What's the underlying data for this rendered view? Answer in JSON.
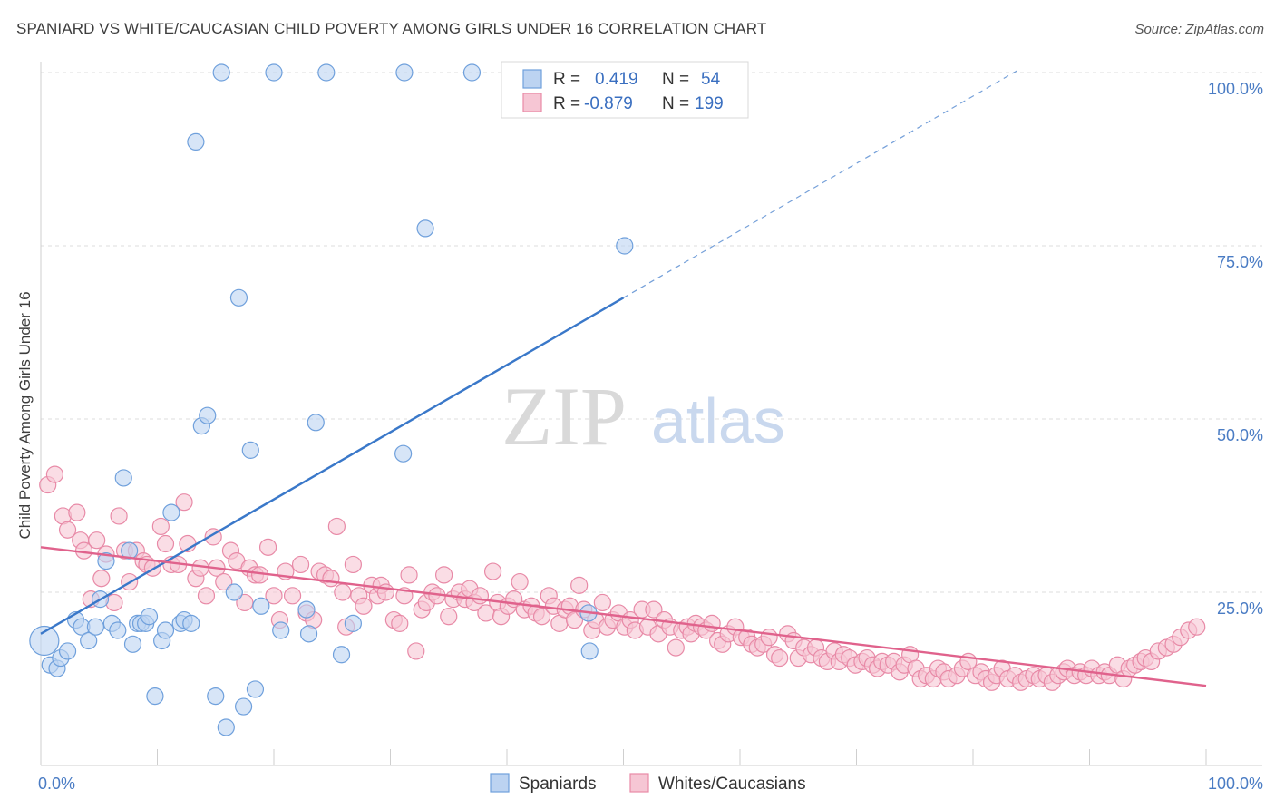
{
  "title": "SPANIARD VS WHITE/CAUCASIAN CHILD POVERTY AMONG GIRLS UNDER 16 CORRELATION CHART",
  "source": "Source: ZipAtlas.com",
  "watermark": {
    "zip": "ZIP",
    "atlas": "atlas"
  },
  "colors": {
    "blue": "#6fa0dc",
    "blue_fill": "#bcd3f1",
    "blue_line": "#3a78c9",
    "pink": "#e88aa7",
    "pink_fill": "#f6c6d4",
    "pink_line": "#e0628c",
    "tick_text": "#4a7cc4",
    "grid": "#dcdcdc"
  },
  "legend": {
    "rows": [
      {
        "r_label": "R =",
        "r_value": "0.419",
        "n_label": "N =",
        "n_value": "54",
        "color": "blue"
      },
      {
        "r_label": "R =",
        "r_value": "-0.879",
        "n_label": "N =",
        "n_value": "199",
        "color": "pink"
      }
    ],
    "placement": "top-center"
  },
  "bottom_legend": [
    {
      "label": "Spaniards",
      "color": "blue"
    },
    {
      "label": "Whites/Caucasians",
      "color": "pink"
    }
  ],
  "chart_data": {
    "type": "scatter",
    "xlabel": "",
    "ylabel": "Child Poverty Among Girls Under 16",
    "xlim": [
      0,
      100
    ],
    "ylim": [
      0,
      100
    ],
    "x_tick_labels": [
      "0.0%",
      "100.0%"
    ],
    "y_tick_labels": [
      "25.0%",
      "50.0%",
      "75.0%",
      "100.0%"
    ],
    "y_ticks": [
      25,
      50,
      75,
      100
    ],
    "grid": true,
    "series": [
      {
        "name": "Spaniards",
        "color": "blue",
        "trend": {
          "x0": 0,
          "y0": 19.0,
          "x1": 50,
          "y1": 67.5,
          "dash_to_x": 84
        },
        "points": [
          [
            0.3,
            18.0
          ],
          [
            0.8,
            14.5
          ],
          [
            1.4,
            14.0
          ],
          [
            1.7,
            15.5
          ],
          [
            2.3,
            16.5
          ],
          [
            3.0,
            21.0
          ],
          [
            3.5,
            20.0
          ],
          [
            4.1,
            18.0
          ],
          [
            4.7,
            20.0
          ],
          [
            5.1,
            24.0
          ],
          [
            5.6,
            29.5
          ],
          [
            6.1,
            20.5
          ],
          [
            6.6,
            19.5
          ],
          [
            7.1,
            41.5
          ],
          [
            7.6,
            31.0
          ],
          [
            7.9,
            17.5
          ],
          [
            8.3,
            20.5
          ],
          [
            8.6,
            20.5
          ],
          [
            9.0,
            20.5
          ],
          [
            9.3,
            21.5
          ],
          [
            9.8,
            10.0
          ],
          [
            10.4,
            18.0
          ],
          [
            10.7,
            19.5
          ],
          [
            11.2,
            36.5
          ],
          [
            12.0,
            20.5
          ],
          [
            12.3,
            21.0
          ],
          [
            12.9,
            20.5
          ],
          [
            13.3,
            90.0
          ],
          [
            13.8,
            49.0
          ],
          [
            14.3,
            50.5
          ],
          [
            15.0,
            10.0
          ],
          [
            15.5,
            100.0
          ],
          [
            15.9,
            5.5
          ],
          [
            16.6,
            25.0
          ],
          [
            17.0,
            67.5
          ],
          [
            17.4,
            8.5
          ],
          [
            18.0,
            45.5
          ],
          [
            18.4,
            11.0
          ],
          [
            18.9,
            23.0
          ],
          [
            20.0,
            100.0
          ],
          [
            20.6,
            19.5
          ],
          [
            22.8,
            22.5
          ],
          [
            23.0,
            19.0
          ],
          [
            23.6,
            49.5
          ],
          [
            24.5,
            100.0
          ],
          [
            25.8,
            16.0
          ],
          [
            26.8,
            20.5
          ],
          [
            31.2,
            100.0
          ],
          [
            31.1,
            45.0
          ],
          [
            33.0,
            77.5
          ],
          [
            37.0,
            100.0
          ],
          [
            47.0,
            22.0
          ],
          [
            47.1,
            16.5
          ],
          [
            50.1,
            75.0
          ]
        ]
      },
      {
        "name": "Whites/Caucasians",
        "color": "pink",
        "trend": {
          "x0": 0,
          "y0": 31.5,
          "x1": 100,
          "y1": 11.5
        },
        "points": [
          [
            0.6,
            40.5
          ],
          [
            1.2,
            42.0
          ],
          [
            1.9,
            36.0
          ],
          [
            2.3,
            34.0
          ],
          [
            3.1,
            36.5
          ],
          [
            3.4,
            32.5
          ],
          [
            3.7,
            31.0
          ],
          [
            4.3,
            24.0
          ],
          [
            4.8,
            32.5
          ],
          [
            5.2,
            27.0
          ],
          [
            5.6,
            30.5
          ],
          [
            6.3,
            23.5
          ],
          [
            6.7,
            36.0
          ],
          [
            7.2,
            31.0
          ],
          [
            7.6,
            26.5
          ],
          [
            8.2,
            31.0
          ],
          [
            8.8,
            29.5
          ],
          [
            9.1,
            29.0
          ],
          [
            9.6,
            28.5
          ],
          [
            10.3,
            34.5
          ],
          [
            10.7,
            32.0
          ],
          [
            11.2,
            29.0
          ],
          [
            11.8,
            29.0
          ],
          [
            12.3,
            38.0
          ],
          [
            12.6,
            32.0
          ],
          [
            13.3,
            27.0
          ],
          [
            13.7,
            28.5
          ],
          [
            14.2,
            24.5
          ],
          [
            14.8,
            33.0
          ],
          [
            15.1,
            28.5
          ],
          [
            15.7,
            26.5
          ],
          [
            16.3,
            31.0
          ],
          [
            16.8,
            29.5
          ],
          [
            17.5,
            23.5
          ],
          [
            17.9,
            28.5
          ],
          [
            18.4,
            27.5
          ],
          [
            18.8,
            27.5
          ],
          [
            19.5,
            31.5
          ],
          [
            20.0,
            24.5
          ],
          [
            20.5,
            21.0
          ],
          [
            21.0,
            28.0
          ],
          [
            21.6,
            24.5
          ],
          [
            22.3,
            29.0
          ],
          [
            22.8,
            22.0
          ],
          [
            23.4,
            21.0
          ],
          [
            23.9,
            28.0
          ],
          [
            24.4,
            27.5
          ],
          [
            24.9,
            27.0
          ],
          [
            25.4,
            34.5
          ],
          [
            25.9,
            25.0
          ],
          [
            26.2,
            20.0
          ],
          [
            26.8,
            29.0
          ],
          [
            27.3,
            24.5
          ],
          [
            27.7,
            23.0
          ],
          [
            28.4,
            26.0
          ],
          [
            28.9,
            24.5
          ],
          [
            29.2,
            26.0
          ],
          [
            29.6,
            25.0
          ],
          [
            30.3,
            21.0
          ],
          [
            30.8,
            20.5
          ],
          [
            31.2,
            24.5
          ],
          [
            31.6,
            27.5
          ],
          [
            32.2,
            16.5
          ],
          [
            32.7,
            22.5
          ],
          [
            33.1,
            23.5
          ],
          [
            33.6,
            25.0
          ],
          [
            34.0,
            24.5
          ],
          [
            34.6,
            27.5
          ],
          [
            35.0,
            21.5
          ],
          [
            35.4,
            24.0
          ],
          [
            35.9,
            25.0
          ],
          [
            36.4,
            24.0
          ],
          [
            36.8,
            25.5
          ],
          [
            37.2,
            23.5
          ],
          [
            37.7,
            24.5
          ],
          [
            38.2,
            22.0
          ],
          [
            38.8,
            28.0
          ],
          [
            39.2,
            23.5
          ],
          [
            39.5,
            21.5
          ],
          [
            40.1,
            23.0
          ],
          [
            40.6,
            24.0
          ],
          [
            41.1,
            26.5
          ],
          [
            41.5,
            22.5
          ],
          [
            42.1,
            23.0
          ],
          [
            42.5,
            22.0
          ],
          [
            43.0,
            21.5
          ],
          [
            43.6,
            24.5
          ],
          [
            44.0,
            23.0
          ],
          [
            44.5,
            20.5
          ],
          [
            45.0,
            22.5
          ],
          [
            45.4,
            23.0
          ],
          [
            45.8,
            21.0
          ],
          [
            46.2,
            26.0
          ],
          [
            46.6,
            22.5
          ],
          [
            47.3,
            19.5
          ],
          [
            47.6,
            21.0
          ],
          [
            48.2,
            23.5
          ],
          [
            48.6,
            20.0
          ],
          [
            49.1,
            21.0
          ],
          [
            49.6,
            22.0
          ],
          [
            50.1,
            20.0
          ],
          [
            50.6,
            21.0
          ],
          [
            51.0,
            19.5
          ],
          [
            51.6,
            22.5
          ],
          [
            52.1,
            20.0
          ],
          [
            52.6,
            22.5
          ],
          [
            53.0,
            19.0
          ],
          [
            53.5,
            21.0
          ],
          [
            54.0,
            20.0
          ],
          [
            54.5,
            17.0
          ],
          [
            55.0,
            19.5
          ],
          [
            55.5,
            20.0
          ],
          [
            55.8,
            19.0
          ],
          [
            56.2,
            20.5
          ],
          [
            56.7,
            20.0
          ],
          [
            57.1,
            19.5
          ],
          [
            57.6,
            20.5
          ],
          [
            58.1,
            18.0
          ],
          [
            58.5,
            17.5
          ],
          [
            59.0,
            19.0
          ],
          [
            59.6,
            20.0
          ],
          [
            60.1,
            18.5
          ],
          [
            60.6,
            18.5
          ],
          [
            61.0,
            17.5
          ],
          [
            61.5,
            17.0
          ],
          [
            62.0,
            17.5
          ],
          [
            62.5,
            18.5
          ],
          [
            63.0,
            16.0
          ],
          [
            63.4,
            15.5
          ],
          [
            64.1,
            19.0
          ],
          [
            64.6,
            18.0
          ],
          [
            65.0,
            15.5
          ],
          [
            65.5,
            17.0
          ],
          [
            66.1,
            16.0
          ],
          [
            66.5,
            17.0
          ],
          [
            67.0,
            15.5
          ],
          [
            67.5,
            15.0
          ],
          [
            68.1,
            16.5
          ],
          [
            68.5,
            15.0
          ],
          [
            68.9,
            16.0
          ],
          [
            69.4,
            15.5
          ],
          [
            69.9,
            14.5
          ],
          [
            70.5,
            15.0
          ],
          [
            70.9,
            15.5
          ],
          [
            71.4,
            14.5
          ],
          [
            71.8,
            14.0
          ],
          [
            72.2,
            15.0
          ],
          [
            72.7,
            14.5
          ],
          [
            73.2,
            15.0
          ],
          [
            73.7,
            13.5
          ],
          [
            74.1,
            14.5
          ],
          [
            74.6,
            16.0
          ],
          [
            75.1,
            14.0
          ],
          [
            75.5,
            12.5
          ],
          [
            76.0,
            13.0
          ],
          [
            76.6,
            12.5
          ],
          [
            77.0,
            14.0
          ],
          [
            77.5,
            13.5
          ],
          [
            77.9,
            12.5
          ],
          [
            78.6,
            13.0
          ],
          [
            79.1,
            14.0
          ],
          [
            79.6,
            15.0
          ],
          [
            80.2,
            13.0
          ],
          [
            80.7,
            13.5
          ],
          [
            81.1,
            12.5
          ],
          [
            81.6,
            12.0
          ],
          [
            82.0,
            13.0
          ],
          [
            82.5,
            14.0
          ],
          [
            83.0,
            12.5
          ],
          [
            83.6,
            13.0
          ],
          [
            84.1,
            12.0
          ],
          [
            84.6,
            12.5
          ],
          [
            85.2,
            13.0
          ],
          [
            85.7,
            12.5
          ],
          [
            86.3,
            13.0
          ],
          [
            86.8,
            12.0
          ],
          [
            87.3,
            13.0
          ],
          [
            87.8,
            13.5
          ],
          [
            88.1,
            14.0
          ],
          [
            88.7,
            13.0
          ],
          [
            89.2,
            13.5
          ],
          [
            89.7,
            13.0
          ],
          [
            90.2,
            14.0
          ],
          [
            90.8,
            13.0
          ],
          [
            91.3,
            13.5
          ],
          [
            91.7,
            13.0
          ],
          [
            92.4,
            14.5
          ],
          [
            92.9,
            12.5
          ],
          [
            93.4,
            14.0
          ],
          [
            93.9,
            14.5
          ],
          [
            94.4,
            15.0
          ],
          [
            94.8,
            15.5
          ],
          [
            95.3,
            15.0
          ],
          [
            95.9,
            16.5
          ],
          [
            96.6,
            17.0
          ],
          [
            97.2,
            17.5
          ],
          [
            97.8,
            18.5
          ],
          [
            98.5,
            19.5
          ],
          [
            99.2,
            20.0
          ]
        ]
      }
    ]
  }
}
